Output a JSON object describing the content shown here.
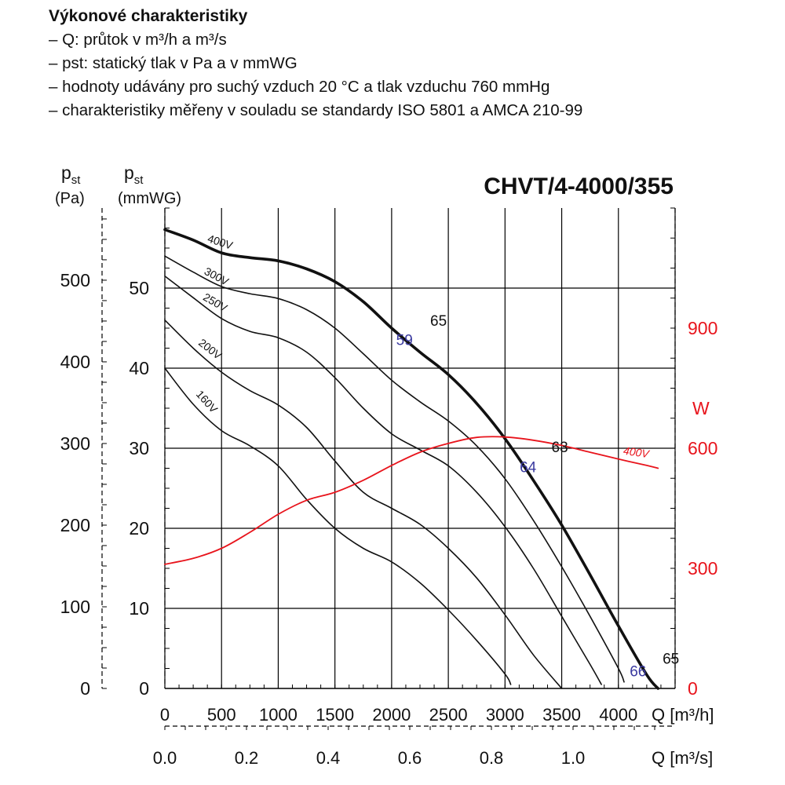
{
  "header": {
    "title": "Výkonové charakteristiky",
    "lines": [
      "– Q: průtok v m³/h a m³/s",
      "– pst: statický tlak v Pa a v mmWG",
      "– hodnoty udávány pro suchý vzduch 20 °C a tlak vzduchu 760 mmHg",
      "– charakteristiky měřeny v souladu se standardy ISO 5801 a AMCA 210-99"
    ]
  },
  "chart_data": {
    "type": "line",
    "title": "CHVT/4-4000/355",
    "x_axis": {
      "label": "Q [m³/h]",
      "range": [
        0,
        4500
      ],
      "ticks": [
        0,
        500,
        1000,
        1500,
        2000,
        2500,
        3000,
        3500,
        4000
      ],
      "tick_labels": [
        "0",
        "500",
        "1000",
        "1500",
        "2000",
        "2500",
        "3000",
        "3500",
        "4000"
      ]
    },
    "x_axis_secondary": {
      "label": "Q [m³/s]",
      "tick_labels": [
        "0.0",
        "0.2",
        "0.4",
        "0.6",
        "0.8",
        "1.0"
      ],
      "ticks": [
        0,
        0.2,
        0.4,
        0.6,
        0.8,
        1.0
      ]
    },
    "y_axis_pa": {
      "label_main": "p",
      "label_sub": "st",
      "unit": "(Pa)",
      "range": [
        0,
        588
      ],
      "ticks": [
        0,
        100,
        200,
        300,
        400,
        500
      ],
      "tick_labels": [
        "0",
        "100",
        "200",
        "300",
        "400",
        "500"
      ]
    },
    "y_axis_mmwg": {
      "label_main": "p",
      "label_sub": "st",
      "unit": "(mmWG)",
      "range": [
        0,
        60
      ],
      "ticks": [
        0,
        10,
        20,
        30,
        40,
        50
      ],
      "tick_labels": [
        "0",
        "10",
        "20",
        "30",
        "40",
        "50"
      ]
    },
    "y_axis_power": {
      "label": "W",
      "range": [
        0,
        1200
      ],
      "ticks": [
        0,
        300,
        600,
        900
      ],
      "tick_labels": [
        "0",
        "300",
        "600",
        "900"
      ],
      "color": "#e8141c"
    },
    "grid": true,
    "series": [
      {
        "name": "400V",
        "axis": "mmWG",
        "bold": true,
        "x": [
          0,
          250,
          500,
          750,
          1000,
          1250,
          1500,
          1750,
          2000,
          2250,
          2500,
          2750,
          3000,
          3250,
          3500,
          3750,
          4000,
          4250,
          4350
        ],
        "y": [
          57.3,
          56.0,
          54.4,
          53.8,
          53.4,
          52.4,
          50.8,
          48.3,
          45.0,
          42.0,
          39.2,
          35.6,
          31.2,
          26.0,
          20.4,
          14.2,
          7.8,
          1.7,
          0
        ]
      },
      {
        "name": "300V",
        "axis": "mmWG",
        "bold": false,
        "x": [
          0,
          250,
          500,
          750,
          1000,
          1250,
          1500,
          1750,
          2000,
          2250,
          2500,
          2750,
          3000,
          3250,
          3500,
          3750,
          4000,
          4050
        ],
        "y": [
          54.0,
          52.0,
          50.2,
          49.3,
          48.7,
          47.3,
          45.0,
          41.8,
          38.5,
          35.8,
          33.4,
          30.3,
          26.2,
          21.0,
          15.2,
          9.0,
          2.5,
          0.8
        ]
      },
      {
        "name": "250V",
        "axis": "mmWG",
        "bold": false,
        "x": [
          0,
          250,
          500,
          750,
          1000,
          1250,
          1500,
          1750,
          2000,
          2250,
          2500,
          2750,
          3000,
          3250,
          3500,
          3750,
          3850
        ],
        "y": [
          51.5,
          48.8,
          46.2,
          44.6,
          43.8,
          42.0,
          38.8,
          35.0,
          31.8,
          29.8,
          27.8,
          24.5,
          20.2,
          15.0,
          9.0,
          3.0,
          0.5
        ]
      },
      {
        "name": "200V",
        "axis": "mmWG",
        "bold": false,
        "x": [
          0,
          250,
          500,
          750,
          1000,
          1250,
          1500,
          1750,
          2000,
          2250,
          2500,
          2750,
          3000,
          3250,
          3500
        ],
        "y": [
          46.0,
          42.5,
          39.5,
          37.2,
          35.4,
          32.6,
          28.4,
          24.5,
          22.5,
          20.5,
          17.5,
          13.8,
          9.2,
          4.2,
          0
        ]
      },
      {
        "name": "160V",
        "axis": "mmWG",
        "bold": false,
        "x": [
          0,
          250,
          500,
          750,
          1000,
          1250,
          1500,
          1750,
          2000,
          2250,
          2500,
          2750,
          3000,
          3050
        ],
        "y": [
          40.0,
          35.5,
          32.2,
          30.3,
          27.8,
          23.6,
          20.0,
          17.5,
          15.8,
          13.2,
          9.8,
          6.0,
          1.8,
          0.5
        ]
      },
      {
        "name": "400V",
        "axis": "W",
        "color": "#e8141c",
        "x": [
          0,
          250,
          500,
          750,
          1000,
          1250,
          1500,
          1750,
          2000,
          2250,
          2500,
          2750,
          3000,
          3250,
          3500,
          3750,
          4000,
          4250,
          4350
        ],
        "y": [
          310,
          325,
          350,
          390,
          435,
          470,
          490,
          520,
          557,
          590,
          612,
          627,
          628,
          620,
          607,
          590,
          573,
          557,
          550
        ]
      }
    ],
    "annotations": [
      {
        "text": "65",
        "x": 2340,
        "y": 45.3,
        "color": "#111"
      },
      {
        "text": "59",
        "x": 2040,
        "y": 42.9,
        "color": "#3a3aa0"
      },
      {
        "text": "63",
        "x": 3410,
        "y": 29.5,
        "color": "#111"
      },
      {
        "text": "64",
        "x": 3130,
        "y": 27.0,
        "color": "#3a3aa0"
      },
      {
        "text": "66",
        "x": 4100,
        "y": 1.5,
        "color": "#3a3aa0"
      },
      {
        "text": "65",
        "x": 4390,
        "y": 3.1,
        "color": "#111"
      }
    ],
    "curve_labels": [
      {
        "text": "400V",
        "x": 370,
        "y": 55.8,
        "angle": 18
      },
      {
        "text": "300V",
        "x": 340,
        "y": 51.8,
        "angle": 28
      },
      {
        "text": "250V",
        "x": 330,
        "y": 48.6,
        "angle": 30
      },
      {
        "text": "200V",
        "x": 290,
        "y": 43.0,
        "angle": 38
      },
      {
        "text": "160V",
        "x": 270,
        "y": 36.7,
        "angle": 48
      },
      {
        "text": "400V",
        "x": 4040,
        "y": 585,
        "axis": "W",
        "angle": 8
      }
    ]
  }
}
